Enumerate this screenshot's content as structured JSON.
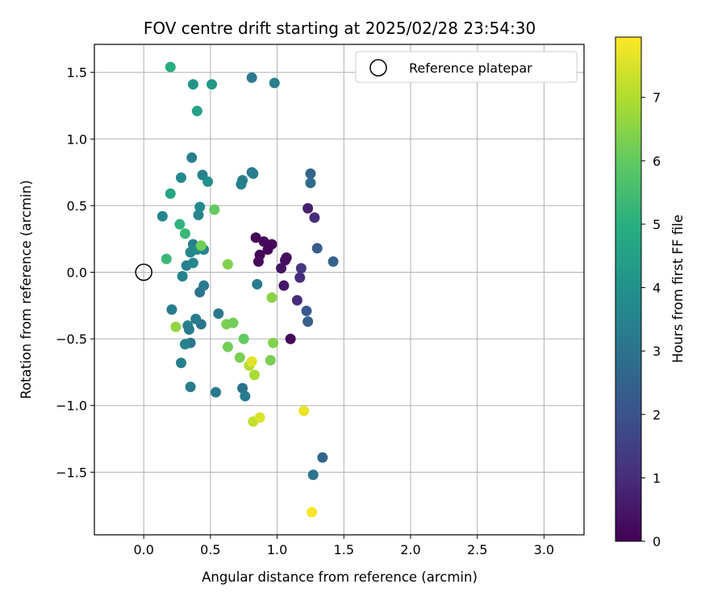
{
  "chart_data": {
    "type": "scatter",
    "title": "FOV centre drift starting at 2025/02/28 23:54:30",
    "xlabel": "Angular distance from reference (arcmin)",
    "ylabel": "Rotation from reference (arcmin)",
    "xlim": [
      -0.37,
      3.3
    ],
    "ylim": [
      -1.97,
      1.71
    ],
    "xticks": [
      "0.0",
      "0.5",
      "1.0",
      "1.5",
      "2.0",
      "2.5",
      "3.0"
    ],
    "xtick_values": [
      0,
      0.5,
      1.0,
      1.5,
      2.0,
      2.5,
      3.0
    ],
    "yticks": [
      "−1.5",
      "−1.0",
      "−0.5",
      "0.0",
      "0.5",
      "1.0",
      "1.5"
    ],
    "ytick_values": [
      -1.5,
      -1.0,
      -0.5,
      0,
      0.5,
      1.0,
      1.5
    ],
    "grid": true,
    "legend": {
      "position": "top-right",
      "entries": [
        "Reference platepar"
      ]
    },
    "reference": {
      "x": 0,
      "y": 0
    },
    "colorbar": {
      "label": "Hours from first FF file",
      "colormap": "viridis",
      "range": [
        0,
        7.95
      ],
      "ticks": [
        "0",
        "1",
        "2",
        "3",
        "4",
        "5",
        "6",
        "7"
      ],
      "tick_values": [
        0,
        1,
        2,
        3,
        4,
        5,
        6,
        7
      ]
    },
    "points": [
      {
        "x": 0.84,
        "y": 0.26,
        "c": 0.1
      },
      {
        "x": 0.9,
        "y": 0.23,
        "c": 0.2
      },
      {
        "x": 0.96,
        "y": 0.21,
        "c": 0.2
      },
      {
        "x": 0.93,
        "y": 0.17,
        "c": 0.1
      },
      {
        "x": 0.87,
        "y": 0.13,
        "c": 0.1
      },
      {
        "x": 1.07,
        "y": 0.11,
        "c": 0.2
      },
      {
        "x": 1.06,
        "y": 0.09,
        "c": 0.3
      },
      {
        "x": 0.86,
        "y": 0.08,
        "c": 0.2
      },
      {
        "x": 1.03,
        "y": 0.03,
        "c": 0.4
      },
      {
        "x": 1.05,
        "y": -0.1,
        "c": 0.5
      },
      {
        "x": 1.1,
        "y": -0.5,
        "c": 0.2
      },
      {
        "x": 1.15,
        "y": -0.21,
        "c": 1.0
      },
      {
        "x": 1.17,
        "y": -0.04,
        "c": 1.0
      },
      {
        "x": 1.18,
        "y": 0.03,
        "c": 1.3
      },
      {
        "x": 1.23,
        "y": 0.48,
        "c": 0.7
      },
      {
        "x": 1.28,
        "y": 0.41,
        "c": 1.0
      },
      {
        "x": 1.22,
        "y": -0.29,
        "c": 2.2
      },
      {
        "x": 1.23,
        "y": -0.37,
        "c": 2.4
      },
      {
        "x": 1.3,
        "y": 0.18,
        "c": 2.3
      },
      {
        "x": 1.42,
        "y": 0.08,
        "c": 2.5
      },
      {
        "x": 1.25,
        "y": 0.74,
        "c": 2.6
      },
      {
        "x": 1.25,
        "y": 0.67,
        "c": 2.8
      },
      {
        "x": 1.34,
        "y": -1.39,
        "c": 2.6
      },
      {
        "x": 1.27,
        "y": -1.52,
        "c": 3.0
      },
      {
        "x": 0.85,
        "y": -0.09,
        "c": 3.3
      },
      {
        "x": 0.81,
        "y": 0.75,
        "c": 3.2
      },
      {
        "x": 0.82,
        "y": 0.74,
        "c": 3.4
      },
      {
        "x": 0.74,
        "y": 0.69,
        "c": 3.4
      },
      {
        "x": 0.73,
        "y": 0.66,
        "c": 3.5
      },
      {
        "x": 0.81,
        "y": 1.46,
        "c": 3.2
      },
      {
        "x": 0.98,
        "y": 1.42,
        "c": 3.4
      },
      {
        "x": 0.74,
        "y": -0.87,
        "c": 3.0
      },
      {
        "x": 0.76,
        "y": -0.93,
        "c": 3.3
      },
      {
        "x": 0.54,
        "y": -0.9,
        "c": 3.2
      },
      {
        "x": 0.56,
        "y": -0.31,
        "c": 3.2
      },
      {
        "x": 0.42,
        "y": -0.15,
        "c": 3.0
      },
      {
        "x": 0.45,
        "y": -0.1,
        "c": 3.2
      },
      {
        "x": 0.43,
        "y": -0.39,
        "c": 3.0
      },
      {
        "x": 0.39,
        "y": -0.35,
        "c": 3.3
      },
      {
        "x": 0.33,
        "y": -0.4,
        "c": 3.5
      },
      {
        "x": 0.34,
        "y": -0.43,
        "c": 3.3
      },
      {
        "x": 0.35,
        "y": -0.53,
        "c": 3.1
      },
      {
        "x": 0.31,
        "y": -0.54,
        "c": 3.5
      },
      {
        "x": 0.28,
        "y": -0.68,
        "c": 3.4
      },
      {
        "x": 0.35,
        "y": -0.86,
        "c": 3.3
      },
      {
        "x": 0.21,
        "y": -0.28,
        "c": 3.3
      },
      {
        "x": 0.29,
        "y": -0.03,
        "c": 3.5
      },
      {
        "x": 0.32,
        "y": 0.05,
        "c": 3.4
      },
      {
        "x": 0.37,
        "y": 0.07,
        "c": 3.7
      },
      {
        "x": 0.35,
        "y": 0.15,
        "c": 3.6
      },
      {
        "x": 0.37,
        "y": 0.21,
        "c": 3.4
      },
      {
        "x": 0.4,
        "y": 0.17,
        "c": 3.8
      },
      {
        "x": 0.45,
        "y": 0.17,
        "c": 3.5
      },
      {
        "x": 0.41,
        "y": 0.43,
        "c": 3.6
      },
      {
        "x": 0.42,
        "y": 0.49,
        "c": 3.7
      },
      {
        "x": 0.44,
        "y": 0.73,
        "c": 3.5
      },
      {
        "x": 0.48,
        "y": 0.68,
        "c": 3.9
      },
      {
        "x": 0.36,
        "y": 0.86,
        "c": 3.4
      },
      {
        "x": 0.28,
        "y": 0.71,
        "c": 3.7
      },
      {
        "x": 0.14,
        "y": 0.42,
        "c": 3.6
      },
      {
        "x": 0.37,
        "y": 1.41,
        "c": 4.1
      },
      {
        "x": 0.51,
        "y": 1.41,
        "c": 4.3
      },
      {
        "x": 0.4,
        "y": 1.21,
        "c": 4.5
      },
      {
        "x": 0.2,
        "y": 1.54,
        "c": 4.9
      },
      {
        "x": 0.2,
        "y": 0.59,
        "c": 4.7
      },
      {
        "x": 0.27,
        "y": 0.36,
        "c": 5.1
      },
      {
        "x": 0.31,
        "y": 0.29,
        "c": 5.3
      },
      {
        "x": 0.17,
        "y": 0.1,
        "c": 5.3
      },
      {
        "x": 0.53,
        "y": 0.47,
        "c": 6.0
      },
      {
        "x": 0.63,
        "y": 0.06,
        "c": 6.4
      },
      {
        "x": 0.43,
        "y": 0.2,
        "c": 6.2
      },
      {
        "x": 0.24,
        "y": -0.41,
        "c": 6.6
      },
      {
        "x": 0.62,
        "y": -0.39,
        "c": 6.3
      },
      {
        "x": 0.67,
        "y": -0.38,
        "c": 6.2
      },
      {
        "x": 0.75,
        "y": -0.5,
        "c": 6.0
      },
      {
        "x": 0.63,
        "y": -0.56,
        "c": 6.2
      },
      {
        "x": 0.72,
        "y": -0.64,
        "c": 6.3
      },
      {
        "x": 0.96,
        "y": -0.19,
        "c": 6.5
      },
      {
        "x": 0.97,
        "y": -0.53,
        "c": 6.4
      },
      {
        "x": 0.95,
        "y": -0.66,
        "c": 6.3
      },
      {
        "x": 0.79,
        "y": -0.7,
        "c": 7.0
      },
      {
        "x": 0.81,
        "y": -0.67,
        "c": 7.6
      },
      {
        "x": 0.83,
        "y": -0.77,
        "c": 6.9
      },
      {
        "x": 0.82,
        "y": -1.12,
        "c": 7.2
      },
      {
        "x": 0.87,
        "y": -1.09,
        "c": 7.5
      },
      {
        "x": 1.2,
        "y": -1.04,
        "c": 7.7
      },
      {
        "x": 1.26,
        "y": -1.8,
        "c": 7.9
      }
    ]
  }
}
